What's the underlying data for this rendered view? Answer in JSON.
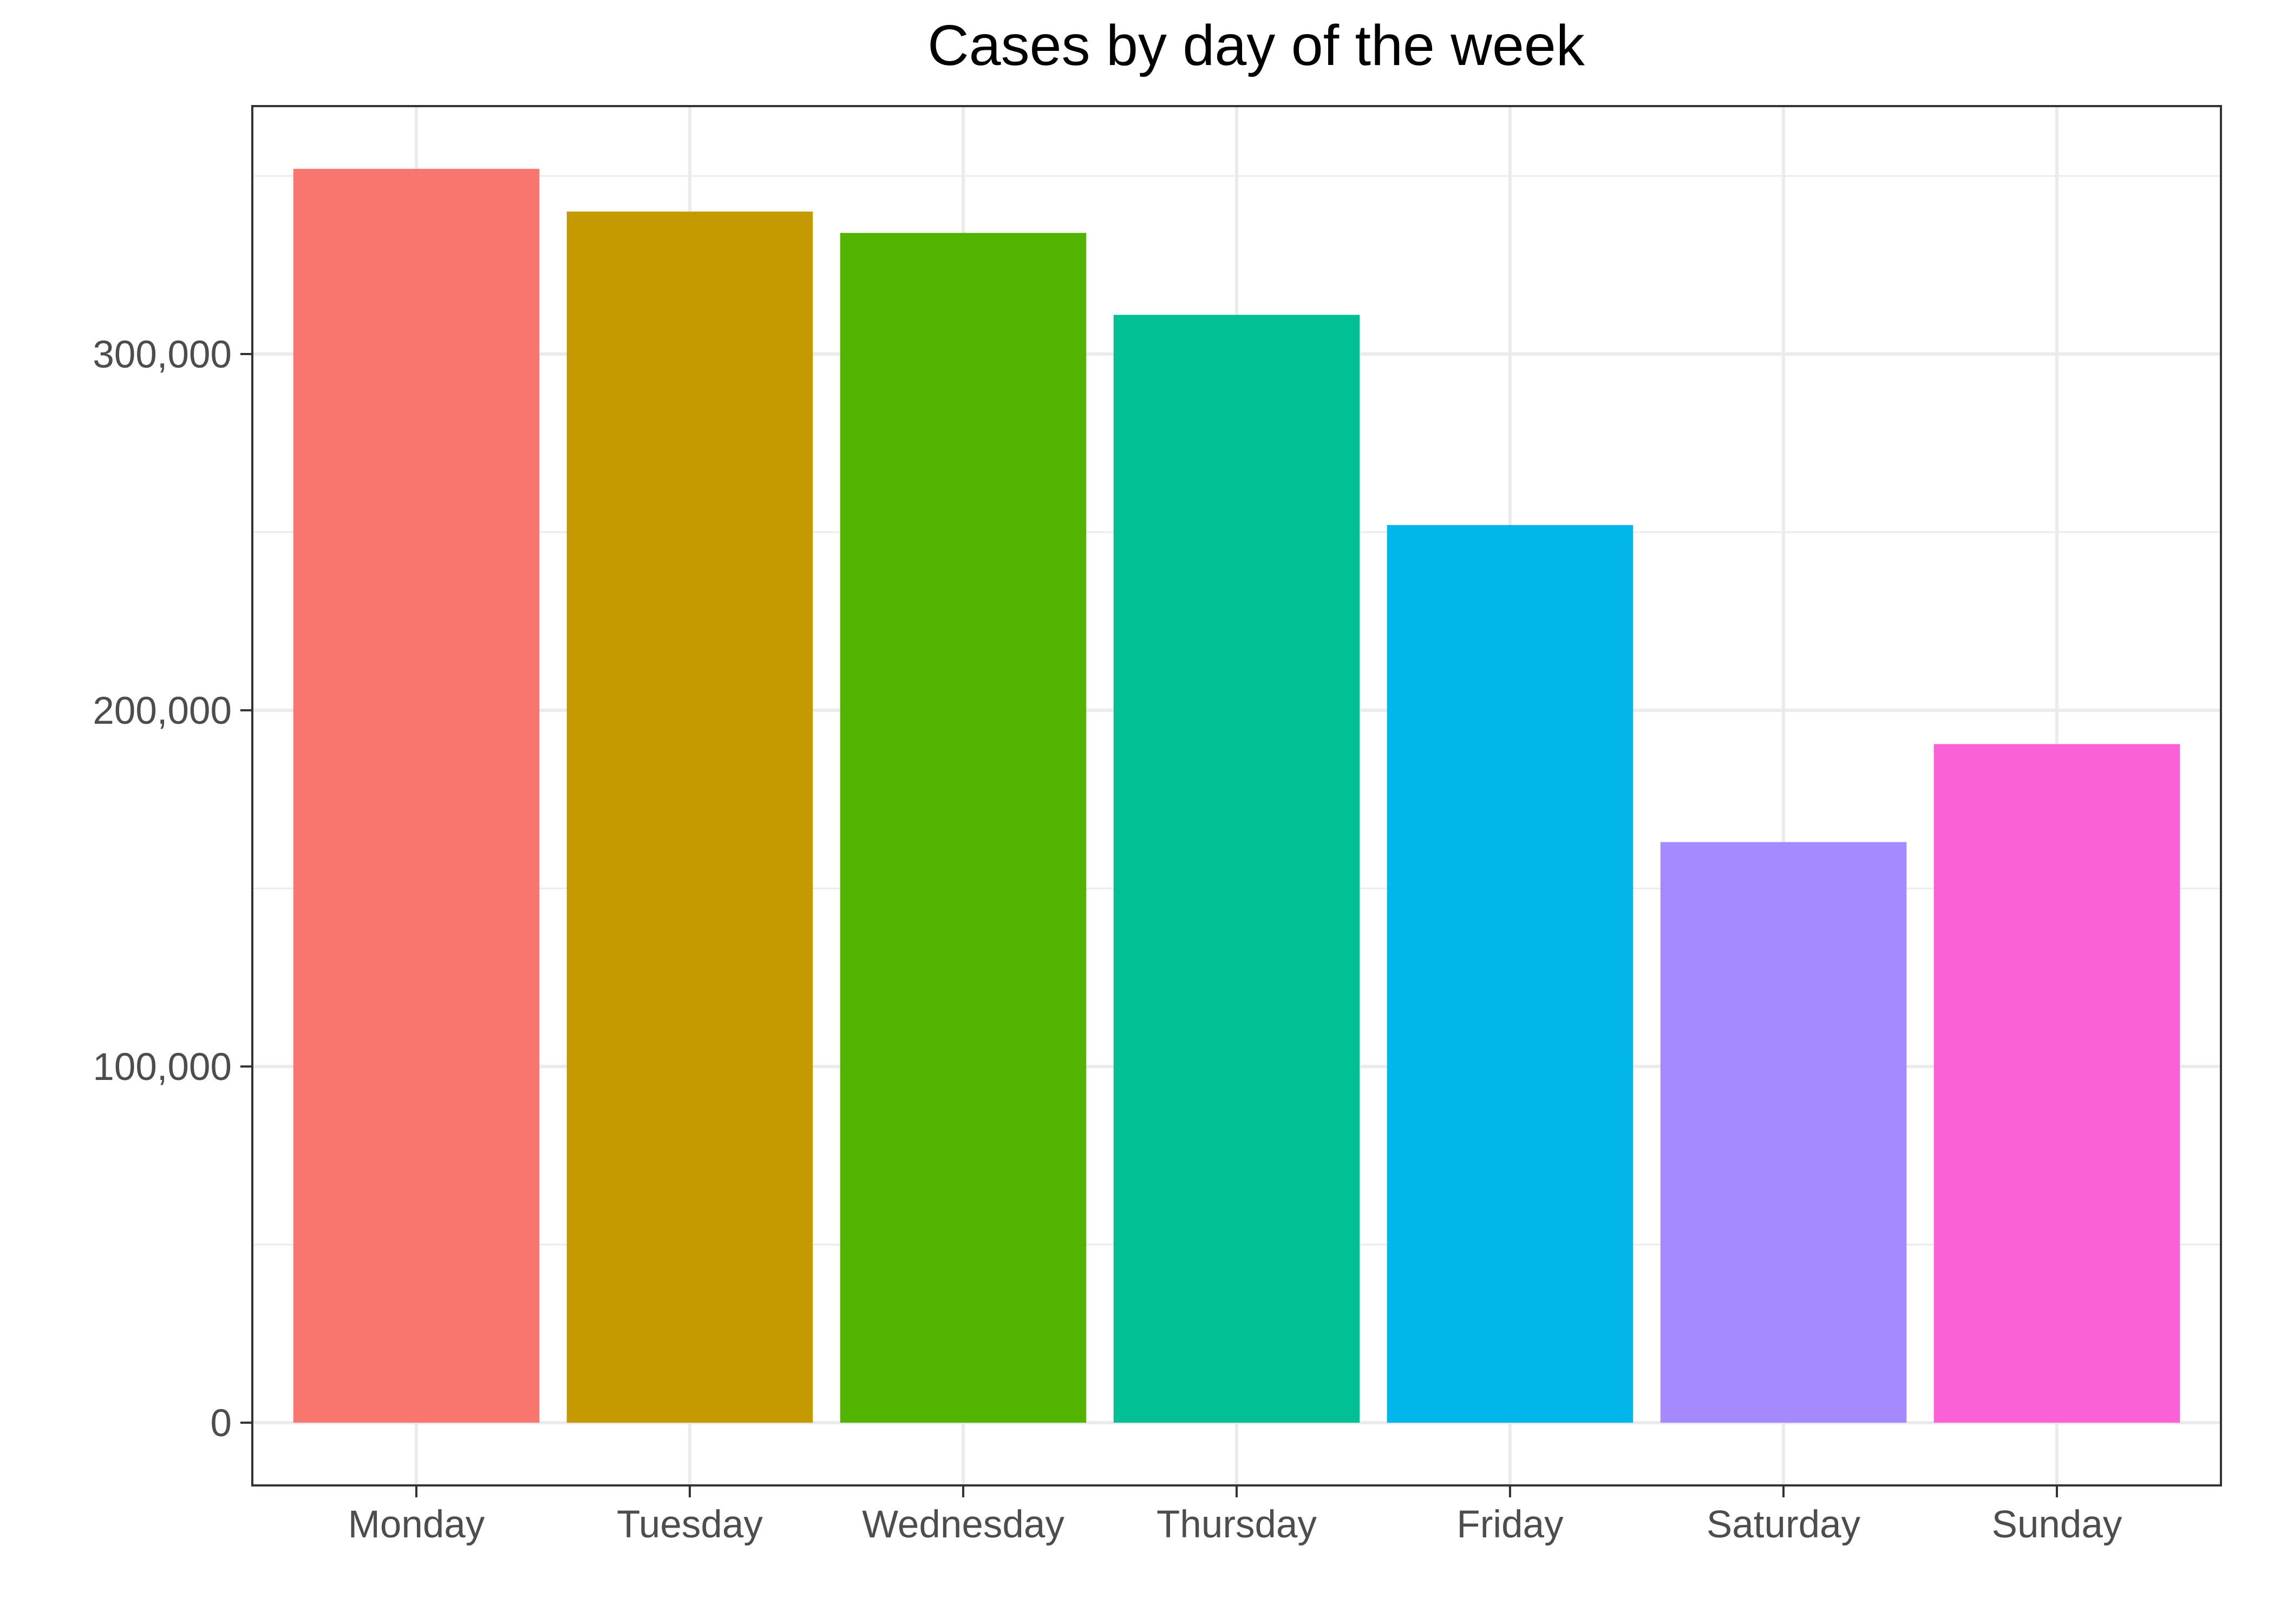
{
  "chart_data": {
    "type": "bar",
    "title": "Cases by day of the week",
    "xlabel": "",
    "ylabel": "",
    "categories": [
      "Monday",
      "Tuesday",
      "Wednesday",
      "Thursday",
      "Friday",
      "Saturday",
      "Sunday"
    ],
    "values": [
      352000,
      340000,
      334000,
      311000,
      252000,
      163000,
      190500
    ],
    "colors": [
      "#F8766D",
      "#C49A00",
      "#53B400",
      "#00C094",
      "#00B6EB",
      "#A58AFF",
      "#FB61D7"
    ],
    "ylim": [
      -17600,
      369600
    ],
    "yticks": [
      0,
      100000,
      200000,
      300000
    ],
    "ytick_labels": [
      "0",
      "100,000",
      "200,000",
      "300,000"
    ],
    "grid": true,
    "legend": "none"
  }
}
